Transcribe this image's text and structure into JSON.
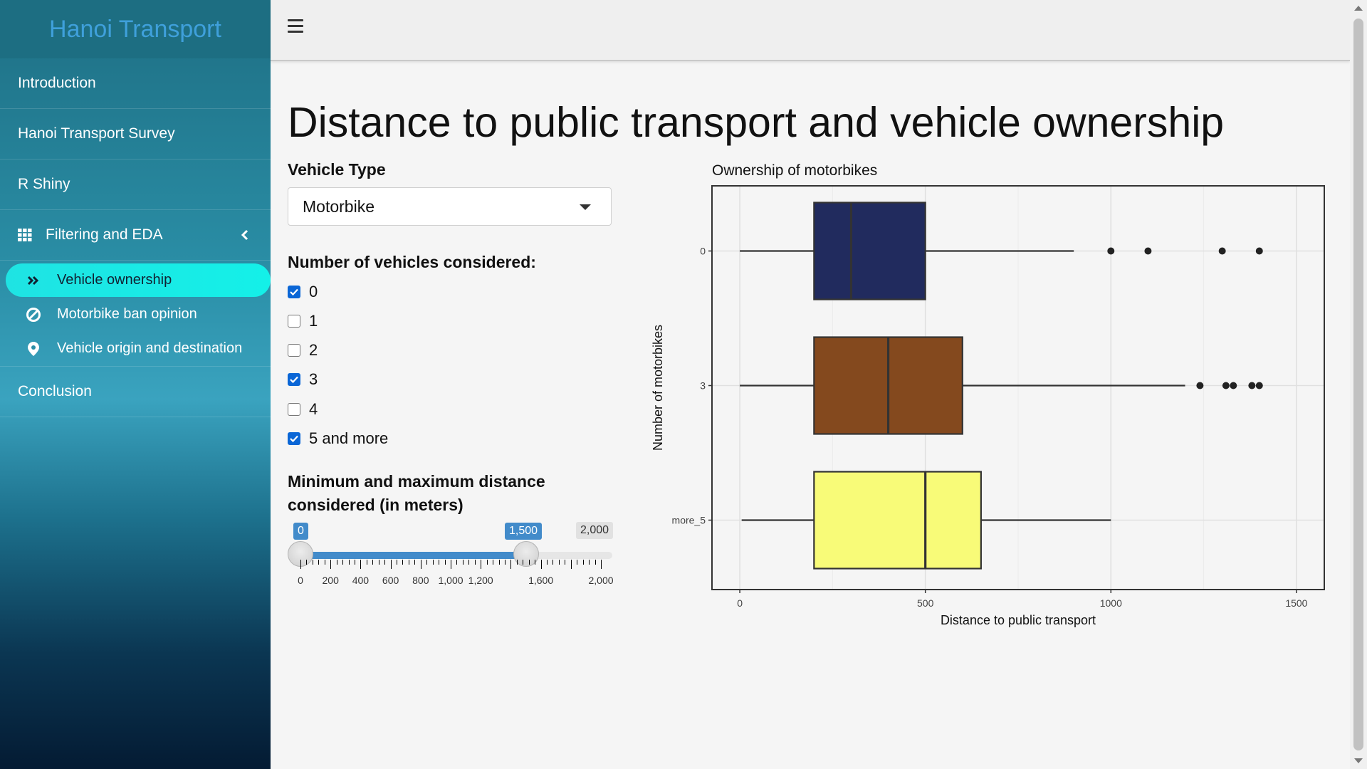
{
  "sidebar": {
    "brand": "Hanoi Transport",
    "items": [
      {
        "label": "Introduction"
      },
      {
        "label": "Hanoi Transport Survey"
      },
      {
        "label": "R Shiny"
      },
      {
        "label": "Filtering and EDA"
      }
    ],
    "subitems": [
      {
        "label": "Vehicle ownership",
        "icon": "double-chevron-right-icon"
      },
      {
        "label": "Motorbike ban opinion",
        "icon": "ban-icon"
      },
      {
        "label": "Vehicle origin and destination",
        "icon": "map-marker-icon"
      }
    ],
    "conclusion": "Conclusion"
  },
  "header": {
    "menu_icon": "hamburger-icon"
  },
  "main": {
    "title": "Distance to public transport and vehicle ownership",
    "vehicle_type": {
      "label": "Vehicle Type",
      "selected": "Motorbike"
    },
    "vehicles_considered": {
      "label": "Number of vehicles considered:",
      "options": [
        {
          "label": "0",
          "checked": true
        },
        {
          "label": "1",
          "checked": false
        },
        {
          "label": "2",
          "checked": false
        },
        {
          "label": "3",
          "checked": true
        },
        {
          "label": "4",
          "checked": false
        },
        {
          "label": "5 and more",
          "checked": true
        }
      ]
    },
    "distance": {
      "label": "Minimum and maximum distance considered (in meters)",
      "min": 0,
      "max": 2000,
      "from": 0,
      "to": 1500,
      "from_label": "0",
      "to_label": "1,500",
      "max_label": "2,000",
      "tick_labels": [
        "0",
        "200",
        "400",
        "600",
        "800",
        "1,000",
        "1,200",
        "1,600",
        "2,000"
      ]
    }
  },
  "chart_data": {
    "type": "boxplot",
    "title": "Ownership of motorbikes",
    "xlabel": "Distance to public transport",
    "ylabel": "Number of motorbikes",
    "xlim": [
      -75,
      1575
    ],
    "xticks": [
      0,
      500,
      1000,
      1500
    ],
    "grid": true,
    "categories": [
      "0",
      "3",
      "more_5"
    ],
    "boxes": [
      {
        "category": "0",
        "color": "#212b5e",
        "min": 0,
        "q1": 200,
        "median": 300,
        "q3": 500,
        "max": 900,
        "outliers": [
          1000,
          1100,
          1300,
          1400
        ]
      },
      {
        "category": "3",
        "color": "#84491e",
        "min": 0,
        "q1": 200,
        "median": 400,
        "q3": 600,
        "max": 1200,
        "outliers": [
          1240,
          1310,
          1330,
          1380,
          1400
        ]
      },
      {
        "category": "more_5",
        "color": "#f8fb78",
        "min": 5,
        "q1": 200,
        "median": 500,
        "q3": 650,
        "max": 1000,
        "outliers": []
      }
    ]
  },
  "colors": {
    "accent": "#428bca",
    "active_item": "#1fe3e3"
  }
}
